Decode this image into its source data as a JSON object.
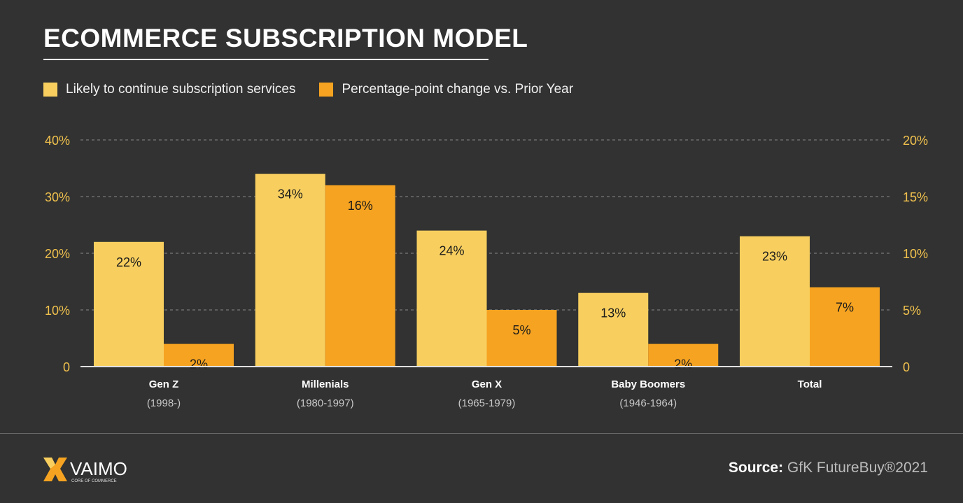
{
  "title": "ECOMMERCE SUBSCRIPTION MODEL",
  "colors": {
    "background": "#313231",
    "series1": "#f8cf5f",
    "series2": "#f6a321",
    "axis_text": "#f2c14e"
  },
  "chart_data": {
    "type": "bar",
    "categories": [
      "Gen Z",
      "Millenials",
      "Gen X",
      "Baby Boomers",
      "Total"
    ],
    "category_sublabels": [
      "(1998-)",
      "(1980-1997)",
      "(1965-1979)",
      "(1946-1964)",
      ""
    ],
    "series": [
      {
        "name": "Likely to continue subscription services",
        "axis": "left",
        "values": [
          22,
          34,
          24,
          13,
          23
        ],
        "labels": [
          "22%",
          "34%",
          "24%",
          "13%",
          "23%"
        ]
      },
      {
        "name": "Percentage-point change vs. Prior Year",
        "axis": "right",
        "values": [
          2,
          16,
          5,
          2,
          7
        ],
        "labels": [
          "2%",
          "16%",
          "5%",
          "2%",
          "7%"
        ]
      }
    ],
    "left_axis": {
      "ylim": [
        0,
        40
      ],
      "ticks": [
        "0",
        "10%",
        "20%",
        "30%",
        "40%"
      ]
    },
    "right_axis": {
      "ylim": [
        0,
        20
      ],
      "ticks": [
        "0",
        "5%",
        "10%",
        "15%",
        "20%"
      ]
    },
    "grid": "dashed horizontal",
    "legend_position": "top-left"
  },
  "footer": {
    "logo_text": "VAIMO",
    "logo_tagline": "CORE OF COMMERCE",
    "source_label": "Source:",
    "source_value": "GfK FutureBuy®2021"
  }
}
